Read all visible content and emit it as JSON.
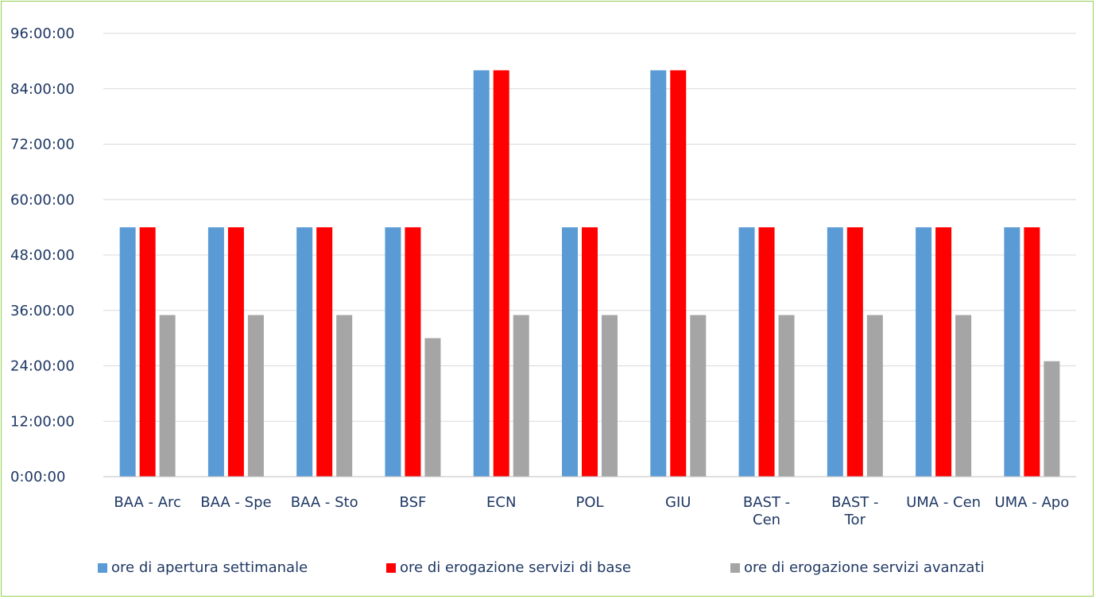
{
  "chart_data": {
    "type": "bar",
    "title": "",
    "xlabel": "",
    "ylabel": "",
    "categories": [
      [
        "BAA - Arc"
      ],
      [
        "BAA - Spe"
      ],
      [
        "BAA - Sto"
      ],
      [
        "BSF"
      ],
      [
        "ECN"
      ],
      [
        "POL"
      ],
      [
        "GIU"
      ],
      [
        "BAST -",
        "Cen"
      ],
      [
        "BAST -",
        "Tor"
      ],
      [
        "UMA - Cen"
      ],
      [
        "UMA - Apo"
      ]
    ],
    "y_unit": "hours",
    "ylim": [
      0,
      96
    ],
    "y_ticks": [
      {
        "value": 0,
        "label": "0:00:00"
      },
      {
        "value": 12,
        "label": "12:00:00"
      },
      {
        "value": 24,
        "label": "24:00:00"
      },
      {
        "value": 36,
        "label": "36:00:00"
      },
      {
        "value": 48,
        "label": "48:00:00"
      },
      {
        "value": 60,
        "label": "60:00:00"
      },
      {
        "value": 72,
        "label": "72:00:00"
      },
      {
        "value": 84,
        "label": "84:00:00"
      },
      {
        "value": 96,
        "label": "96:00:00"
      }
    ],
    "grid": true,
    "legend_position": "bottom",
    "series": [
      {
        "name": "ore di apertura settimanale",
        "color": "#5b9bd5",
        "values": [
          54,
          54,
          54,
          54,
          88,
          54,
          88,
          54,
          54,
          54,
          54
        ]
      },
      {
        "name": "ore di erogazione servizi di base",
        "color": "#ff0000",
        "values": [
          54,
          54,
          54,
          54,
          88,
          54,
          88,
          54,
          54,
          54,
          54
        ]
      },
      {
        "name": "ore di erogazione servizi avanzati",
        "color": "#a5a5a5",
        "values": [
          35,
          35,
          35,
          30,
          35,
          35,
          35,
          35,
          35,
          35,
          25
        ]
      }
    ]
  }
}
